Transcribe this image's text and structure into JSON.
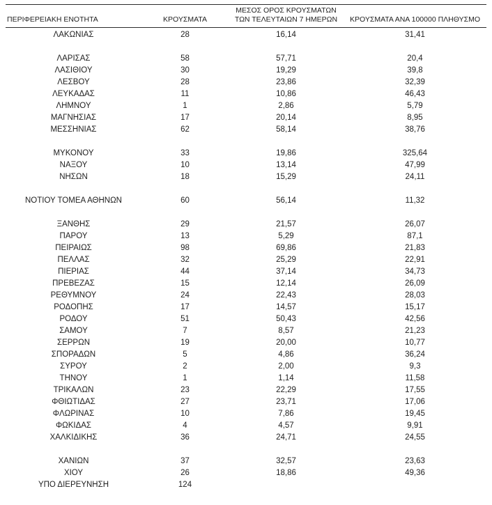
{
  "table": {
    "headers": [
      {
        "label": "ΠΕΡΙΦΕΡΕΙΑΚΗ ΕΝΟΤΗΤΑ"
      },
      {
        "label": "ΚΡΟΥΣΜΑΤΑ"
      },
      {
        "label": "ΜΕΣΟΣ ΟΡΟΣ ΚΡΟΥΣΜΑΤΩΝ ΤΩΝ ΤΕΛΕΥΤΑΙΩΝ 7 ΗΜΕΡΩΝ"
      },
      {
        "label": "ΚΡΟΥΣΜΑΤΑ ΑΝΑ 100000 ΠΛΗΘΥΣΜΟ"
      }
    ],
    "rows": [
      {
        "region": "ΛΑΚΩΝΙΑΣ",
        "cases": "28",
        "avg7": "16,14",
        "per100k": "31,41"
      },
      {
        "spacer": true
      },
      {
        "region": "ΛΑΡΙΣΑΣ",
        "cases": "58",
        "avg7": "57,71",
        "per100k": "20,4"
      },
      {
        "region": "ΛΑΣΙΘΙΟΥ",
        "cases": "30",
        "avg7": "19,29",
        "per100k": "39,8"
      },
      {
        "region": "ΛΕΣΒΟΥ",
        "cases": "28",
        "avg7": "23,86",
        "per100k": "32,39"
      },
      {
        "region": "ΛΕΥΚΑΔΑΣ",
        "cases": "11",
        "avg7": "10,86",
        "per100k": "46,43"
      },
      {
        "region": "ΛΗΜΝΟΥ",
        "cases": "1",
        "avg7": "2,86",
        "per100k": "5,79"
      },
      {
        "region": "ΜΑΓΝΗΣΙΑΣ",
        "cases": "17",
        "avg7": "20,14",
        "per100k": "8,95"
      },
      {
        "region": "ΜΕΣΣΗΝΙΑΣ",
        "cases": "62",
        "avg7": "58,14",
        "per100k": "38,76"
      },
      {
        "spacer": true
      },
      {
        "region": "ΜΥΚΟΝΟΥ",
        "cases": "33",
        "avg7": "19,86",
        "per100k": "325,64"
      },
      {
        "region": "ΝΑΞΟΥ",
        "cases": "10",
        "avg7": "13,14",
        "per100k": "47,99"
      },
      {
        "region": "ΝΗΣΩΝ",
        "cases": "18",
        "avg7": "15,29",
        "per100k": "24,11"
      },
      {
        "spacer": true
      },
      {
        "region": "ΝΟΤΙΟΥ ΤΟΜΕΑ ΑΘΗΝΩΝ",
        "cases": "60",
        "avg7": "56,14",
        "per100k": "11,32"
      },
      {
        "spacer": true
      },
      {
        "region": "ΞΑΝΘΗΣ",
        "cases": "29",
        "avg7": "21,57",
        "per100k": "26,07"
      },
      {
        "region": "ΠΑΡΟΥ",
        "cases": "13",
        "avg7": "5,29",
        "per100k": "87,1"
      },
      {
        "region": "ΠΕΙΡΑΙΩΣ",
        "cases": "98",
        "avg7": "69,86",
        "per100k": "21,83"
      },
      {
        "region": "ΠΕΛΛΑΣ",
        "cases": "32",
        "avg7": "25,29",
        "per100k": "22,91"
      },
      {
        "region": "ΠΙΕΡΙΑΣ",
        "cases": "44",
        "avg7": "37,14",
        "per100k": "34,73"
      },
      {
        "region": "ΠΡΕΒΕΖΑΣ",
        "cases": "15",
        "avg7": "12,14",
        "per100k": "26,09"
      },
      {
        "region": "ΡΕΘΥΜΝΟΥ",
        "cases": "24",
        "avg7": "22,43",
        "per100k": "28,03"
      },
      {
        "region": "ΡΟΔΟΠΗΣ",
        "cases": "17",
        "avg7": "14,57",
        "per100k": "15,17"
      },
      {
        "region": "ΡΟΔΟΥ",
        "cases": "51",
        "avg7": "50,43",
        "per100k": "42,56"
      },
      {
        "region": "ΣΑΜΟΥ",
        "cases": "7",
        "avg7": "8,57",
        "per100k": "21,23"
      },
      {
        "region": "ΣΕΡΡΩΝ",
        "cases": "19",
        "avg7": "20,00",
        "per100k": "10,77"
      },
      {
        "region": "ΣΠΟΡΑΔΩΝ",
        "cases": "5",
        "avg7": "4,86",
        "per100k": "36,24"
      },
      {
        "region": "ΣΥΡΟΥ",
        "cases": "2",
        "avg7": "2,00",
        "per100k": "9,3"
      },
      {
        "region": "ΤΗΝΟΥ",
        "cases": "1",
        "avg7": "1,14",
        "per100k": "11,58"
      },
      {
        "region": "ΤΡΙΚΑΛΩΝ",
        "cases": "23",
        "avg7": "22,29",
        "per100k": "17,55"
      },
      {
        "region": "ΦΘΙΩΤΙΔΑΣ",
        "cases": "27",
        "avg7": "23,71",
        "per100k": "17,06"
      },
      {
        "region": "ΦΛΩΡΙΝΑΣ",
        "cases": "10",
        "avg7": "7,86",
        "per100k": "19,45"
      },
      {
        "region": "ΦΩΚΙΔΑΣ",
        "cases": "4",
        "avg7": "4,57",
        "per100k": "9,91"
      },
      {
        "region": "ΧΑΛΚΙΔΙΚΗΣ",
        "cases": "36",
        "avg7": "24,71",
        "per100k": "24,55"
      },
      {
        "spacer": true
      },
      {
        "region": "ΧΑΝΙΩΝ",
        "cases": "37",
        "avg7": "32,57",
        "per100k": "23,63"
      },
      {
        "region": "ΧΙΟΥ",
        "cases": "26",
        "avg7": "18,86",
        "per100k": "49,36"
      },
      {
        "region": "ΥΠΟ ΔΙΕΡΕΥΝΗΣΗ",
        "cases": "124",
        "avg7": "",
        "per100k": ""
      }
    ]
  }
}
